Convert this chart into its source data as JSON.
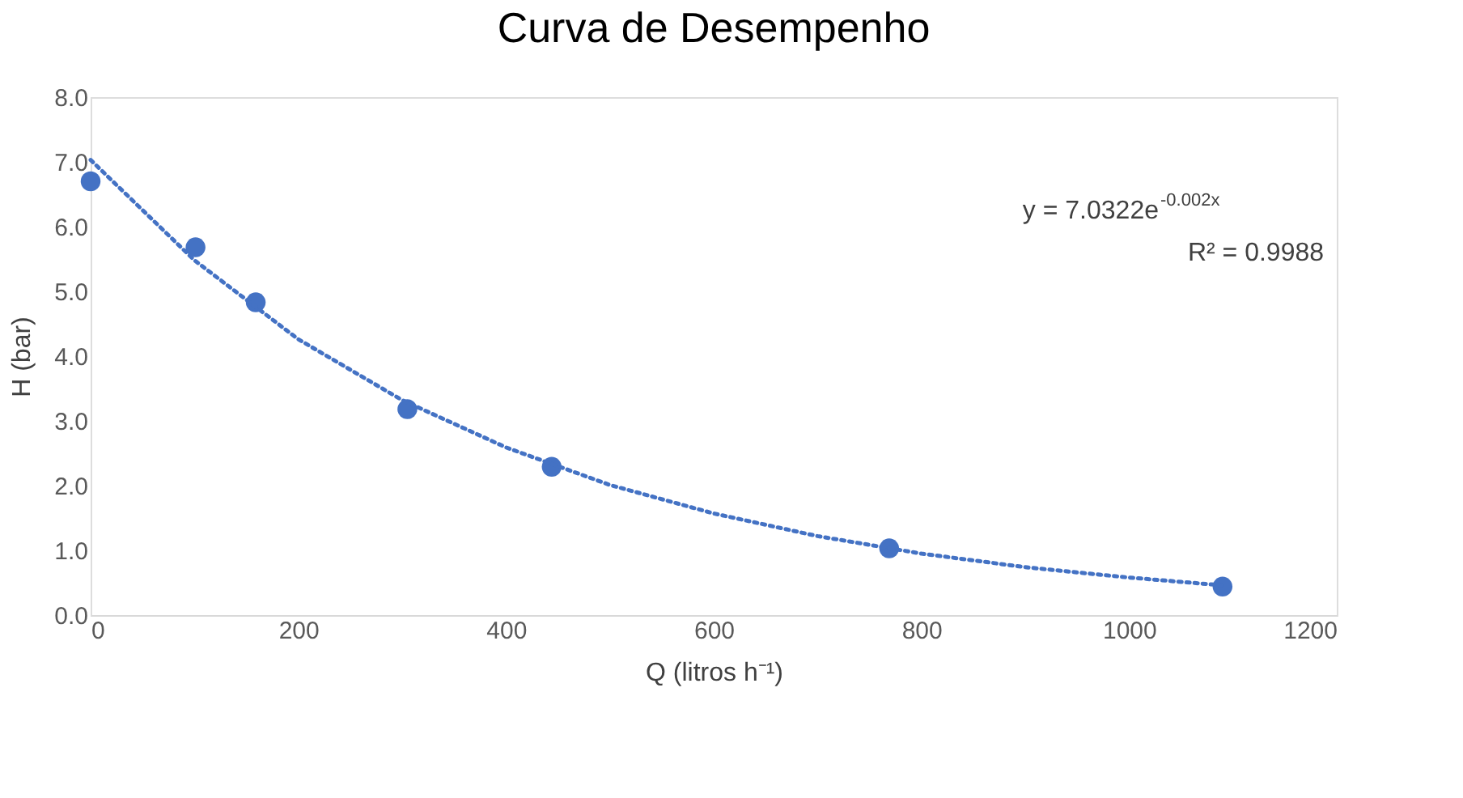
{
  "chart_data": {
    "type": "scatter",
    "title": "Curva de Desempenho",
    "xlabel": "Q (litros h⁻¹)",
    "ylabel": "H (bar)",
    "series": [
      {
        "color": "#4472c4",
        "x": [
          0,
          101,
          159,
          305,
          444,
          769,
          1090
        ],
        "values": [
          6.7,
          5.68,
          4.83,
          3.18,
          2.29,
          1.03,
          0.44
        ],
        "marker": "circle"
      },
      {
        "type": "line",
        "color": "#4472c4",
        "line_style": "dotted",
        "marker": "none",
        "x": [
          0,
          100,
          200,
          300,
          400,
          500,
          600,
          700,
          800,
          900,
          1000,
          1090
        ],
        "values": [
          7.03,
          5.48,
          4.26,
          3.32,
          2.59,
          2.01,
          1.57,
          1.22,
          0.95,
          0.74,
          0.58,
          0.46
        ]
      }
    ],
    "annotations": [
      "y = 7.0322e$^{-0.002x}$",
      "R² = 0.9988"
    ],
    "xlim": [
      0,
      1200
    ],
    "xticks": [
      0,
      200,
      400,
      600,
      800,
      1000,
      1200
    ],
    "ylim": [
      0,
      8
    ],
    "yticks": [
      {
        "value": 0,
        "label": "0.0"
      },
      {
        "value": 1,
        "label": "1.0"
      },
      {
        "value": 2,
        "label": "2.0"
      },
      {
        "value": 3,
        "label": "3.0"
      },
      {
        "value": 4,
        "label": "4.0"
      },
      {
        "value": 5,
        "label": "5.0"
      },
      {
        "value": 6,
        "label": "6.0"
      },
      {
        "value": 7,
        "label": "7.0"
      },
      {
        "value": 8,
        "label": "8.0"
      }
    ],
    "grid": false
  }
}
